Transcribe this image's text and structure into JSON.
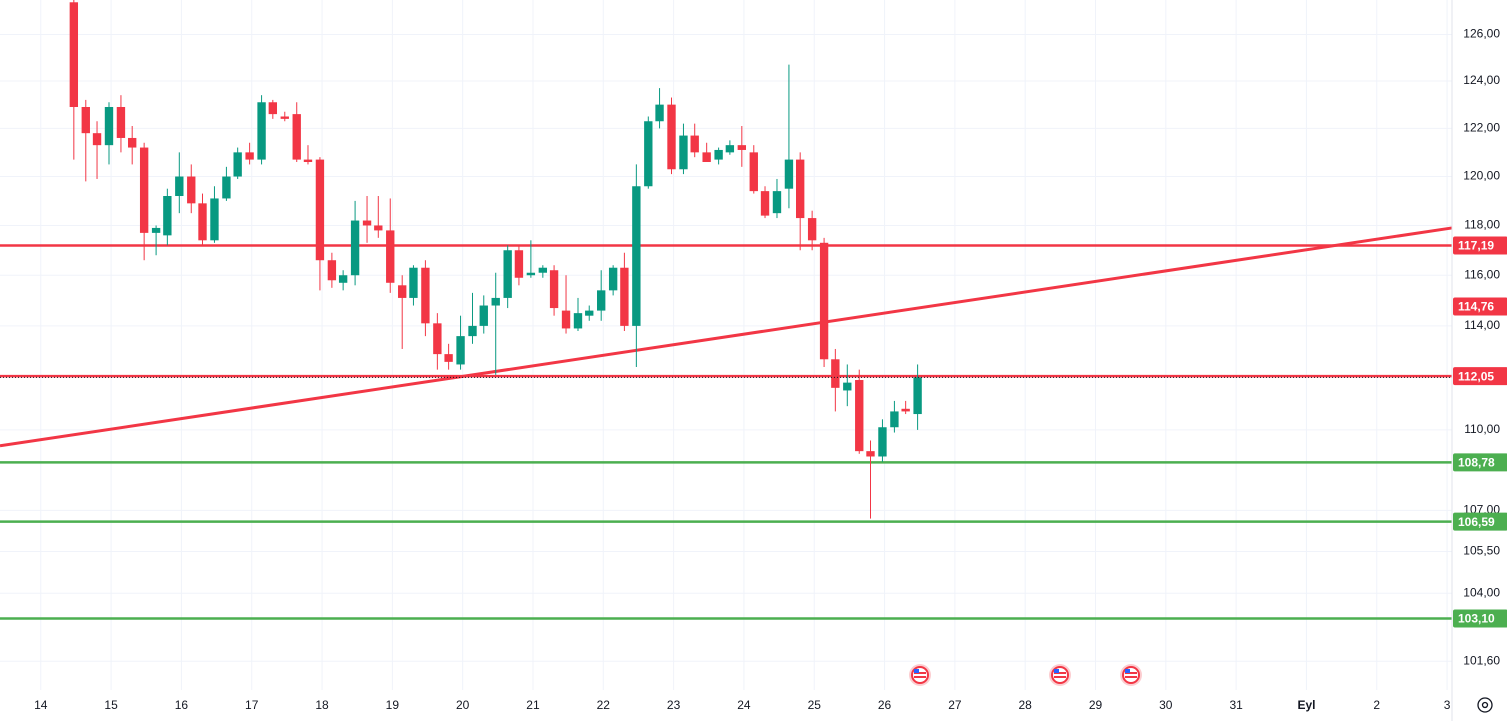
{
  "chart_data": {
    "type": "candlestick",
    "log_scale": true,
    "grid": true,
    "up_color": "#089981",
    "down_color": "#f23645",
    "x": [
      14.47,
      14.64,
      14.8,
      14.97,
      15.14,
      15.3,
      15.47,
      15.64,
      15.8,
      15.97,
      16.14,
      16.3,
      16.47,
      16.64,
      16.8,
      16.97,
      17.14,
      17.3,
      17.47,
      17.64,
      17.8,
      17.97,
      18.14,
      18.3,
      18.47,
      18.64,
      18.8,
      18.97,
      19.14,
      19.3,
      19.47,
      19.64,
      19.8,
      19.97,
      20.14,
      20.3,
      20.47,
      20.64,
      20.8,
      20.97,
      21.14,
      21.3,
      21.47,
      21.64,
      21.8,
      21.97,
      22.14,
      22.3,
      22.47,
      22.64,
      22.8,
      22.97,
      23.14,
      23.3,
      23.47,
      23.64,
      23.8,
      23.97,
      24.14,
      24.3,
      24.47,
      24.64,
      24.8,
      24.97,
      25.14,
      25.3,
      25.47,
      25.64,
      25.8,
      25.97,
      26.14,
      26.3,
      26.47
    ],
    "open": [
      127.4,
      122.9,
      121.8,
      121.3,
      122.9,
      121.6,
      121.2,
      117.7,
      117.6,
      119.2,
      120.0,
      118.9,
      117.4,
      119.1,
      120.0,
      121.0,
      120.7,
      123.1,
      122.5,
      122.6,
      120.7,
      120.7,
      116.6,
      115.7,
      116.0,
      118.2,
      118.0,
      117.8,
      115.6,
      115.1,
      116.3,
      114.1,
      112.9,
      112.5,
      113.6,
      114.0,
      114.8,
      115.1,
      117.0,
      116.0,
      116.1,
      116.2,
      114.6,
      113.9,
      114.4,
      114.6,
      115.4,
      116.3,
      114.0,
      119.6,
      122.3,
      123.0,
      120.3,
      121.7,
      121.0,
      120.7,
      121.0,
      121.3,
      121.0,
      119.4,
      118.5,
      119.5,
      120.7,
      118.3,
      117.3,
      112.7,
      111.5,
      111.9,
      109.2,
      109.0,
      110.1,
      110.8,
      110.6
    ],
    "high": [
      127.5,
      123.2,
      122.3,
      123.1,
      123.4,
      122.1,
      121.4,
      118.0,
      119.5,
      121.0,
      120.5,
      119.3,
      119.6,
      120.4,
      121.2,
      121.4,
      123.4,
      123.2,
      122.7,
      123.1,
      121.3,
      120.8,
      116.9,
      116.2,
      119.0,
      119.2,
      119.2,
      119.1,
      116.0,
      116.4,
      116.6,
      114.5,
      113.3,
      114.4,
      115.3,
      115.2,
      116.1,
      117.2,
      117.2,
      117.4,
      116.4,
      116.4,
      116.0,
      115.1,
      114.8,
      116.2,
      116.4,
      116.9,
      120.5,
      122.5,
      123.7,
      123.3,
      122.2,
      122.2,
      121.4,
      121.2,
      121.5,
      122.1,
      121.3,
      119.6,
      119.9,
      124.7,
      121.0,
      118.6,
      117.5,
      113.1,
      112.5,
      112.3,
      109.6,
      110.4,
      111.1,
      111.1,
      112.5
    ],
    "low": [
      120.7,
      119.8,
      119.9,
      120.5,
      121.0,
      120.5,
      116.6,
      116.8,
      117.2,
      118.5,
      118.5,
      117.2,
      117.3,
      119.0,
      119.9,
      120.5,
      120.5,
      122.4,
      122.3,
      120.6,
      120.5,
      115.4,
      115.5,
      115.4,
      115.6,
      117.3,
      117.5,
      115.3,
      113.1,
      114.8,
      113.6,
      112.3,
      112.3,
      112.3,
      113.3,
      113.7,
      112.1,
      114.7,
      115.6,
      115.9,
      115.9,
      114.4,
      113.7,
      113.8,
      114.2,
      114.2,
      115.2,
      113.8,
      112.4,
      119.5,
      122.0,
      120.1,
      120.1,
      120.8,
      120.6,
      120.5,
      120.9,
      120.4,
      119.3,
      118.3,
      118.3,
      118.7,
      117.0,
      117.0,
      112.4,
      110.7,
      110.9,
      109.1,
      106.7,
      108.8,
      109.9,
      110.6,
      110.0
    ],
    "close": [
      122.9,
      121.8,
      121.3,
      122.9,
      121.6,
      121.2,
      117.7,
      117.9,
      119.2,
      120.0,
      118.9,
      117.4,
      119.1,
      120.0,
      121.0,
      120.7,
      123.1,
      122.6,
      122.4,
      120.7,
      120.6,
      116.6,
      115.8,
      116.0,
      118.2,
      118.0,
      117.8,
      115.7,
      115.1,
      116.3,
      114.1,
      112.9,
      112.6,
      113.6,
      114.0,
      114.8,
      115.1,
      117.0,
      115.9,
      116.1,
      116.3,
      114.7,
      113.9,
      114.5,
      114.6,
      115.4,
      116.3,
      114.0,
      119.6,
      122.3,
      123.0,
      120.3,
      121.7,
      121.0,
      120.6,
      121.1,
      121.3,
      121.1,
      119.4,
      118.4,
      119.4,
      120.7,
      118.3,
      117.4,
      112.7,
      111.6,
      111.8,
      109.2,
      109.0,
      110.1,
      110.7,
      110.7,
      112.0
    ],
    "xlim": [
      13.42,
      34.07
    ],
    "xticks": [
      14,
      15,
      16,
      17,
      18,
      19,
      20,
      21,
      22,
      23,
      24,
      25,
      26,
      27,
      28,
      29,
      30,
      31,
      {
        "value": 32,
        "label": "Eyl"
      },
      {
        "value": 33,
        "label": "2"
      },
      {
        "value": 34,
        "label": "3"
      }
    ],
    "ylim": [
      100.6,
      127.5
    ],
    "yticks": [
      {
        "value": 126,
        "label": "126,00"
      },
      {
        "value": 124,
        "label": "124,00"
      },
      {
        "value": 122,
        "label": "122,00"
      },
      {
        "value": 120,
        "label": "120,00"
      },
      {
        "value": 118,
        "label": "118,00"
      },
      {
        "value": 116,
        "label": "116,00"
      },
      {
        "value": 114,
        "label": "114,00"
      },
      {
        "value": 110,
        "label": "110,00"
      },
      {
        "value": 107,
        "label": "107,00"
      },
      {
        "value": 105.5,
        "label": "105,50"
      },
      {
        "value": 104,
        "label": "104,00"
      },
      {
        "value": 101.6,
        "label": "101,60"
      }
    ],
    "levels": [
      {
        "value": 117.19,
        "label": "117,19",
        "color": "#f23645"
      },
      {
        "value": 112.05,
        "label": "112,05",
        "color": "#f23645"
      },
      {
        "value": 108.78,
        "label": "108,78",
        "color": "#4caf50"
      },
      {
        "value": 106.59,
        "label": "106,59",
        "color": "#4caf50"
      },
      {
        "value": 103.1,
        "label": "103,10",
        "color": "#4caf50"
      }
    ],
    "trendline": {
      "x": [
        13.42,
        34.07
      ],
      "y": [
        109.4,
        117.9
      ],
      "color": "#f23645",
      "value": 114.76,
      "label": "114,76"
    }
  }
}
